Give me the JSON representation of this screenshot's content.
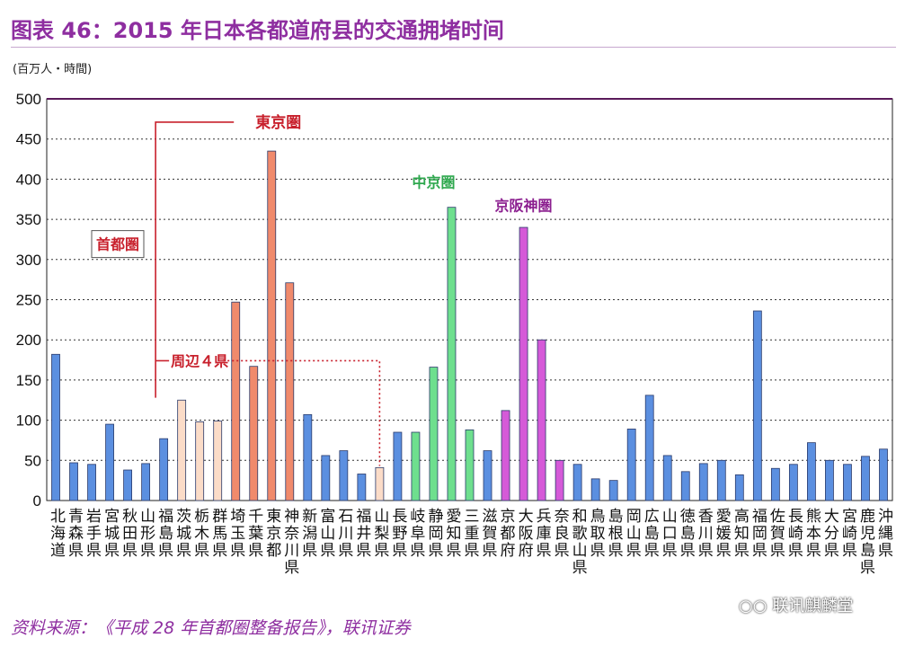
{
  "header": {
    "title": "图表 46：2015 年日本各都道府县的交通拥堵时间"
  },
  "footer": {
    "source": "资料来源：《平成 28 年首都圈整备报告》，联讯证券"
  },
  "watermark": {
    "icon": "wechat-icon",
    "text": "联讯麒麟堂"
  },
  "chart_data": {
    "type": "bar",
    "unit_label": "(百万人・時間)",
    "ylim": [
      0,
      500
    ],
    "yticks": [
      0,
      50,
      100,
      150,
      200,
      250,
      300,
      350,
      400,
      450,
      500
    ],
    "grid": true,
    "categories": [
      "北海道",
      "青森県",
      "岩手県",
      "宮城県",
      "秋田県",
      "山形県",
      "福島県",
      "茨城県",
      "栃木県",
      "群馬県",
      "埼玉県",
      "千葉県",
      "東京都",
      "神奈川県",
      "新潟県",
      "富山県",
      "石川県",
      "福井県",
      "山梨県",
      "長野県",
      "岐阜県",
      "静岡県",
      "愛知県",
      "三重県",
      "滋賀県",
      "京都府",
      "大阪府",
      "兵庫県",
      "奈良県",
      "和歌山県",
      "鳥取県",
      "島根県",
      "岡山県",
      "広島県",
      "山口県",
      "徳島県",
      "香川県",
      "愛媛県",
      "高知県",
      "福岡県",
      "佐賀県",
      "長崎県",
      "熊本県",
      "大分県",
      "宮崎県",
      "鹿児島県",
      "沖縄県"
    ],
    "values": [
      182,
      47,
      45,
      95,
      38,
      46,
      77,
      125,
      98,
      99,
      247,
      167,
      435,
      271,
      107,
      56,
      62,
      33,
      41,
      85,
      85,
      166,
      365,
      88,
      62,
      112,
      340,
      200,
      50,
      45,
      27,
      25,
      89,
      131,
      56,
      36,
      46,
      50,
      32,
      236,
      40,
      45,
      72,
      50,
      45,
      55,
      64
    ],
    "groups": [
      "other",
      "other",
      "other",
      "other",
      "other",
      "other",
      "other",
      "shuto",
      "shuto",
      "shuto",
      "tokyo",
      "tokyo",
      "tokyo",
      "tokyo",
      "other",
      "other",
      "other",
      "other",
      "shuto",
      "other",
      "chukyo",
      "chukyo",
      "chukyo",
      "chukyo",
      "other",
      "kinki",
      "kinki",
      "kinki",
      "kinki",
      "other",
      "other",
      "other",
      "other",
      "other",
      "other",
      "other",
      "other",
      "other",
      "other",
      "other",
      "other",
      "other",
      "other",
      "other",
      "other",
      "other",
      "other"
    ],
    "group_colors": {
      "other": "#5b8fe0",
      "tokyo": "#f08a6c",
      "shuto": "#fbdcc8",
      "chukyo": "#6edf8e",
      "kinki": "#d55ad8"
    },
    "annotations": {
      "tokyo_area": "東京圏",
      "capital_area": "首都圏",
      "surrounding": "周辺４県",
      "chukyo_area": "中京圏",
      "keihanshin_area": "京阪神圏"
    },
    "annotation_colors": {
      "tokyo_area": "#c8202c",
      "capital_area": "#c8202c",
      "surrounding": "#c8202c",
      "chukyo_area": "#2ea84e",
      "keihanshin_area": "#8b1e8f"
    }
  }
}
